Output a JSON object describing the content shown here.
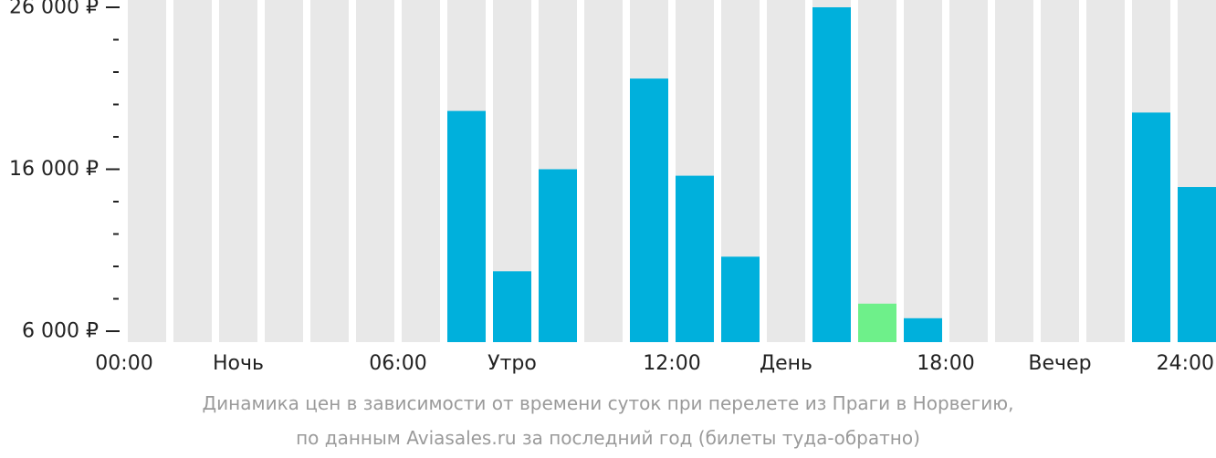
{
  "chart_data": {
    "type": "bar",
    "categories": [
      "00",
      "01",
      "02",
      "03",
      "04",
      "05",
      "06",
      "07",
      "08",
      "09",
      "10",
      "11",
      "12",
      "13",
      "14",
      "15",
      "16",
      "17",
      "18",
      "19",
      "20",
      "21",
      "22",
      "23"
    ],
    "values": [
      null,
      null,
      null,
      null,
      null,
      null,
      null,
      19600,
      9700,
      16000,
      null,
      21600,
      15600,
      10600,
      null,
      26000,
      7700,
      6800,
      null,
      null,
      null,
      null,
      19500,
      14900
    ],
    "highlight_index": 16,
    "ylim": [
      6000,
      26000
    ],
    "yticks": [
      {
        "value": 26000,
        "label": "26 000 ₽"
      },
      {
        "value": 16000,
        "label": "16 000 ₽"
      },
      {
        "value": 6000,
        "label": "6 000 ₽"
      }
    ],
    "y_minor_step": 2000,
    "xticks": [
      {
        "pos": 0,
        "label": "00:00"
      },
      {
        "pos": 2.5,
        "label": "Ночь"
      },
      {
        "pos": 6,
        "label": "06:00"
      },
      {
        "pos": 8.5,
        "label": "Утро"
      },
      {
        "pos": 12,
        "label": "12:00"
      },
      {
        "pos": 14.5,
        "label": "День"
      },
      {
        "pos": 18,
        "label": "18:00"
      },
      {
        "pos": 20.5,
        "label": "Вечер"
      },
      {
        "pos": 24,
        "label": "24:00"
      }
    ],
    "colors": {
      "bar": "#00b0dc",
      "highlight": "#6ef08a",
      "background_column": "#e8e8e8",
      "axis": "#222222"
    }
  },
  "caption": {
    "line1": "Динамика цен в зависимости от времени суток при перелете из Праги в Норвегию,",
    "line2": "по данным Aviasales.ru за последний год (билеты туда-обратно)"
  }
}
